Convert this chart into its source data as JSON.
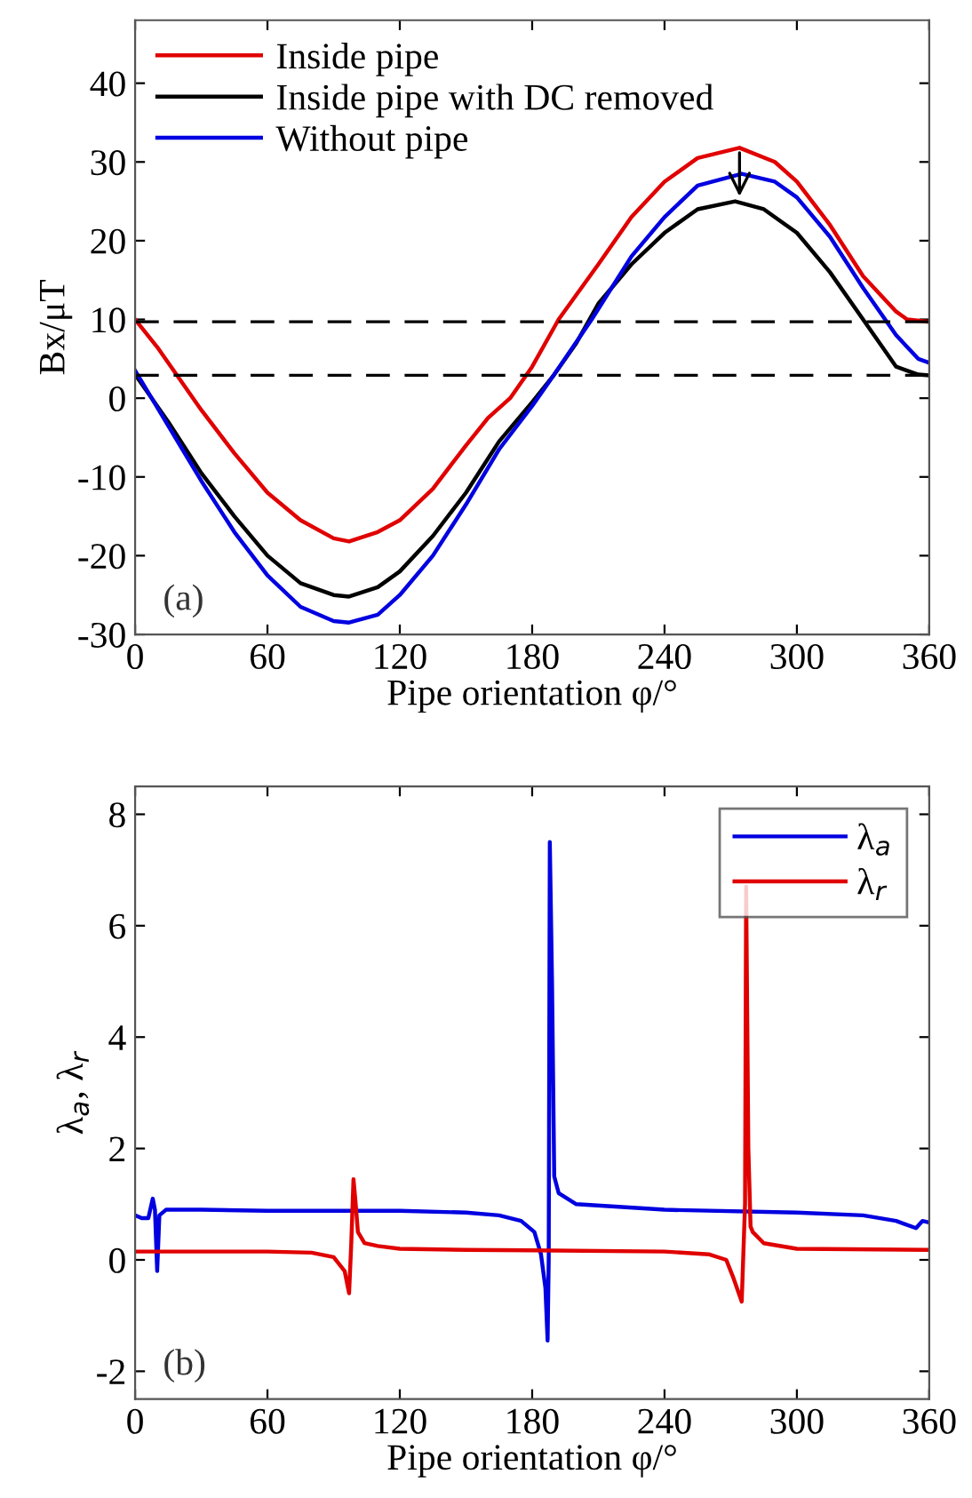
{
  "chart_data": [
    {
      "type": "line",
      "xlabel": "Pipe orientation φ/°",
      "ylabel": "Bx/μT",
      "xlim": [
        0,
        360
      ],
      "xticks": [
        0,
        60,
        120,
        180,
        240,
        300,
        360
      ],
      "ylim": [
        -30,
        48
      ],
      "yticks": [
        -30,
        -20,
        -10,
        0,
        10,
        20,
        30,
        40
      ],
      "grid": false,
      "legend": "top left",
      "line_style": "solid",
      "marker": "none",
      "annotations": [
        "(a)"
      ],
      "ref_lines": [
        {
          "axis": "y",
          "value": 9.7,
          "color": "#000000",
          "line_style": "dashed"
        },
        {
          "axis": "y",
          "value": 2.9,
          "color": "#000000",
          "line_style": "dashed"
        }
      ],
      "series": [
        {
          "name": "Inside pipe",
          "color": "#e00000",
          "x": [
            0,
            10,
            20,
            30,
            45,
            60,
            75,
            90,
            97,
            110,
            120,
            135,
            150,
            160,
            170,
            180,
            192,
            210,
            225,
            240,
            255,
            274,
            290,
            300,
            315,
            330,
            345,
            350,
            360
          ],
          "values": [
            10,
            6.5,
            2.5,
            -1.5,
            -7,
            -12,
            -15.5,
            -17.8,
            -18.2,
            -17,
            -15.5,
            -11.5,
            -6,
            -2.5,
            0,
            4,
            10,
            17,
            23,
            27.5,
            30.5,
            31.8,
            30,
            27.5,
            22,
            15.5,
            11,
            10,
            9.7
          ]
        },
        {
          "name": "Inside pipe with DC removed",
          "color": "#000000",
          "x": [
            0,
            15,
            30,
            45,
            60,
            75,
            90,
            97,
            110,
            120,
            135,
            150,
            165,
            180,
            190,
            200,
            210,
            225,
            240,
            255,
            272,
            285,
            300,
            315,
            330,
            345,
            355,
            360
          ],
          "values": [
            3,
            -3,
            -9.5,
            -15,
            -20,
            -23.5,
            -25,
            -25.2,
            -24,
            -22,
            -17.5,
            -12,
            -5.5,
            -0.5,
            3,
            7,
            12,
            17,
            21,
            24,
            25,
            24,
            21,
            16,
            10,
            4,
            3,
            2.9
          ]
        },
        {
          "name": "Without pipe",
          "color": "#0000e0",
          "x": [
            0,
            15,
            30,
            45,
            60,
            75,
            90,
            97,
            110,
            120,
            135,
            150,
            165,
            180,
            190,
            207,
            225,
            240,
            255,
            275,
            290,
            300,
            315,
            330,
            345,
            355,
            360
          ],
          "values": [
            3.5,
            -3.5,
            -10.5,
            -17,
            -22.5,
            -26.5,
            -28.3,
            -28.5,
            -27.5,
            -25,
            -20,
            -13.5,
            -6.5,
            -1,
            3,
            10,
            18,
            23,
            27,
            28.5,
            27.5,
            25.5,
            20.5,
            14,
            8,
            5,
            4.5
          ]
        }
      ]
    },
    {
      "type": "line",
      "xlabel": "Pipe orientation φ/°",
      "ylabel": "λ$_{a}$, λ$_{r}$",
      "xlim": [
        0,
        360
      ],
      "xticks": [
        0,
        60,
        120,
        180,
        240,
        300,
        360
      ],
      "ylim": [
        -2.5,
        8.5
      ],
      "yticks": [
        -2,
        0,
        2,
        4,
        6,
        8
      ],
      "grid": false,
      "legend": "top right",
      "line_style": "solid",
      "marker": "none",
      "annotations": [
        "(b)"
      ],
      "series": [
        {
          "name": "λ$_{a}$",
          "color": "#0000e0",
          "x": [
            0,
            3,
            6,
            8,
            9,
            10,
            11,
            14,
            20,
            30,
            60,
            90,
            120,
            150,
            165,
            175,
            181,
            184,
            186,
            187,
            187.5,
            188,
            189,
            190,
            192,
            200,
            240,
            300,
            330,
            345,
            354,
            357,
            360
          ],
          "values": [
            0.8,
            0.75,
            0.75,
            1.1,
            0.9,
            -0.2,
            0.8,
            0.9,
            0.9,
            0.9,
            0.88,
            0.88,
            0.88,
            0.85,
            0.8,
            0.7,
            0.5,
            0.1,
            -0.5,
            -1.45,
            0,
            7.5,
            5,
            1.5,
            1.2,
            1.0,
            0.9,
            0.85,
            0.8,
            0.7,
            0.57,
            0.7,
            0.67
          ]
        },
        {
          "name": "λ$_{r}$",
          "color": "#e00000",
          "x": [
            0,
            60,
            80,
            90,
            95,
            97,
            98,
            99,
            100,
            101,
            104,
            110,
            120,
            150,
            180,
            240,
            260,
            268,
            271,
            275,
            276.5,
            277,
            278,
            279,
            280,
            285,
            300,
            360
          ],
          "values": [
            0.15,
            0.15,
            0.13,
            0.05,
            -0.2,
            -0.6,
            0.3,
            1.45,
            1.0,
            0.5,
            0.3,
            0.25,
            0.2,
            0.18,
            0.17,
            0.15,
            0.1,
            0,
            -0.3,
            -0.75,
            1,
            6.7,
            2,
            0.6,
            0.5,
            0.3,
            0.2,
            0.18
          ]
        }
      ]
    }
  ]
}
